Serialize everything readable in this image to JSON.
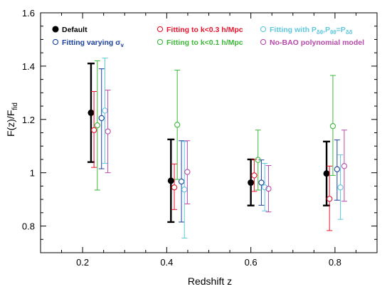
{
  "chart_data": {
    "type": "scatter",
    "xlabel": "Redshift z",
    "ylabel": "F(z)/F",
    "ylabel_subscript": "fid",
    "xlim": [
      0.1,
      0.9
    ],
    "ylim": [
      0.7,
      1.6
    ],
    "x_ticks": [
      0.2,
      0.4,
      0.6,
      0.8
    ],
    "x_tick_labels": [
      "0.2",
      "0.4",
      "0.6",
      "0.8"
    ],
    "y_ticks": [
      0.8,
      1.0,
      1.2,
      1.4,
      1.6
    ],
    "y_tick_labels": [
      "0.8",
      "1",
      "1.2",
      "1.4",
      "1.6"
    ],
    "grid": false,
    "legend_placement": "top",
    "series": [
      {
        "name": "Default",
        "color": "#000000",
        "marker": "filled-circle",
        "points": [
          {
            "x": 0.22,
            "y": 1.225,
            "ylow": 1.04,
            "yhigh": 1.41
          },
          {
            "x": 0.41,
            "y": 0.97,
            "ylow": 0.815,
            "yhigh": 1.125
          },
          {
            "x": 0.6,
            "y": 0.963,
            "ylow": 0.877,
            "yhigh": 1.05
          },
          {
            "x": 0.78,
            "y": 0.997,
            "ylow": 0.877,
            "yhigh": 1.117
          }
        ]
      },
      {
        "name": "Fitting varying σv",
        "name_parts": [
          "Fitting varying σ",
          "v"
        ],
        "color": "#1a3f9a",
        "marker": "open-circle",
        "points": [
          {
            "x": 0.245,
            "y": 1.205,
            "ylow": 1.015,
            "yhigh": 1.39
          },
          {
            "x": 0.435,
            "y": 0.967,
            "ylow": 0.815,
            "yhigh": 1.12
          },
          {
            "x": 0.625,
            "y": 0.963,
            "ylow": 0.878,
            "yhigh": 1.048
          },
          {
            "x": 0.805,
            "y": 1.013,
            "ylow": 0.897,
            "yhigh": 1.123
          }
        ]
      },
      {
        "name": "Fitting to k<0.3 h/Mpc",
        "color": "#e8142c",
        "marker": "open-circle",
        "points": [
          {
            "x": 0.227,
            "y": 1.16,
            "ylow": 1.02,
            "yhigh": 1.305
          },
          {
            "x": 0.418,
            "y": 0.945,
            "ylow": 0.862,
            "yhigh": 1.033
          },
          {
            "x": 0.608,
            "y": 0.99,
            "ylow": 0.93,
            "yhigh": 1.05
          },
          {
            "x": 0.787,
            "y": 0.902,
            "ylow": 0.783,
            "yhigh": 1.025
          }
        ]
      },
      {
        "name": "Fitting to k<0.1 h/Mpc",
        "color": "#3cb83a",
        "marker": "open-circle",
        "points": [
          {
            "x": 0.235,
            "y": 1.178,
            "ylow": 0.935,
            "yhigh": 1.42
          },
          {
            "x": 0.425,
            "y": 1.18,
            "ylow": 0.975,
            "yhigh": 1.385
          },
          {
            "x": 0.617,
            "y": 1.048,
            "ylow": 0.935,
            "yhigh": 1.16
          },
          {
            "x": 0.795,
            "y": 1.175,
            "ylow": 0.99,
            "yhigh": 1.365
          }
        ]
      },
      {
        "name": "Fitting with Pδθ,Pθθ=Pδδ",
        "name_parts": [
          "Fitting with P",
          "δθ",
          ",P",
          "θθ",
          "=P",
          "δδ"
        ],
        "color": "#5fc8dc",
        "marker": "open-circle",
        "points": [
          {
            "x": 0.253,
            "y": 1.233,
            "ylow": 1.035,
            "yhigh": 1.43
          },
          {
            "x": 0.442,
            "y": 0.937,
            "ylow": 0.755,
            "yhigh": 1.117
          },
          {
            "x": 0.633,
            "y": 0.945,
            "ylow": 0.857,
            "yhigh": 1.035
          },
          {
            "x": 0.813,
            "y": 0.945,
            "ylow": 0.825,
            "yhigh": 1.067
          }
        ]
      },
      {
        "name": "No-BAO polynomial model",
        "color": "#b84aaa",
        "marker": "open-circle",
        "points": [
          {
            "x": 0.26,
            "y": 1.155,
            "ylow": 1.0,
            "yhigh": 1.31
          },
          {
            "x": 0.449,
            "y": 1.003,
            "ylow": 0.883,
            "yhigh": 1.12
          },
          {
            "x": 0.642,
            "y": 0.94,
            "ylow": 0.853,
            "yhigh": 1.027
          },
          {
            "x": 0.822,
            "y": 1.025,
            "ylow": 0.893,
            "yhigh": 1.16
          }
        ]
      }
    ]
  }
}
